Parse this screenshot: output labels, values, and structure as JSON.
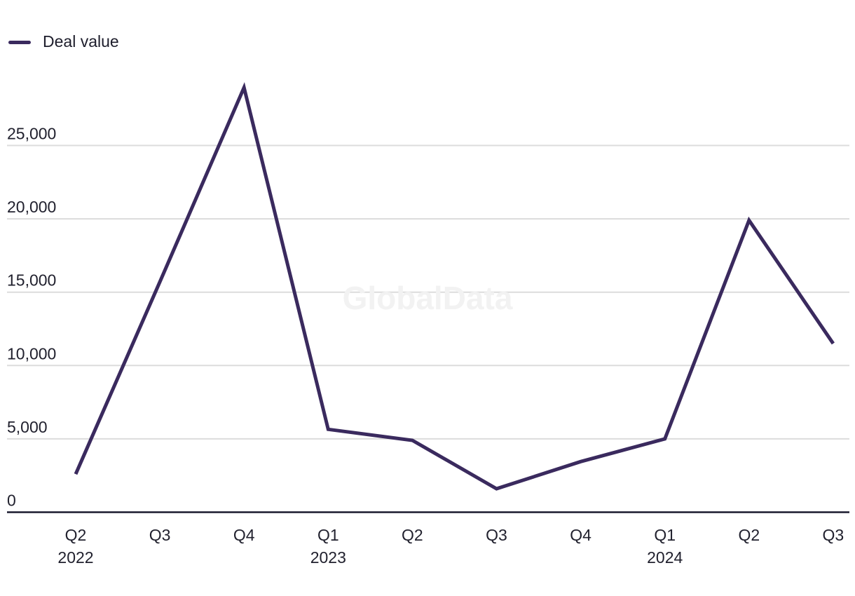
{
  "watermark": "GlobalData",
  "colors": {
    "line": "#3a2a5e",
    "grid": "#dcdcdc",
    "axis": "#1a1a2e",
    "text": "#21212e",
    "watermark": "#f2f2f2"
  },
  "chart_data": {
    "type": "line",
    "title": "",
    "categories": [
      "Q2 2022",
      "Q3 2022",
      "Q4 2022",
      "Q1 2023",
      "Q2 2023",
      "Q3 2023",
      "Q4 2023",
      "Q1 2024",
      "Q2 2024",
      "Q3 2024"
    ],
    "x_tick_labels": [
      {
        "quarter": "Q2",
        "year": "2022"
      },
      {
        "quarter": "Q3",
        "year": ""
      },
      {
        "quarter": "Q4",
        "year": ""
      },
      {
        "quarter": "Q1",
        "year": "2023"
      },
      {
        "quarter": "Q2",
        "year": ""
      },
      {
        "quarter": "Q3",
        "year": ""
      },
      {
        "quarter": "Q4",
        "year": ""
      },
      {
        "quarter": "Q1",
        "year": "2024"
      },
      {
        "quarter": "Q2",
        "year": ""
      },
      {
        "quarter": "Q3",
        "year": ""
      }
    ],
    "series": [
      {
        "name": "Deal value",
        "values": [
          2600,
          15700,
          28950,
          5650,
          4900,
          1600,
          3450,
          5000,
          19900,
          11500
        ]
      }
    ],
    "y_ticks": [
      0,
      5000,
      10000,
      15000,
      20000,
      25000
    ],
    "y_tick_labels": [
      "0",
      "5,000",
      "10,000",
      "15,000",
      "20,000",
      "25,000"
    ],
    "ylim": [
      0,
      30000
    ],
    "grid": "horizontal-only",
    "legend_position": "top-left"
  }
}
